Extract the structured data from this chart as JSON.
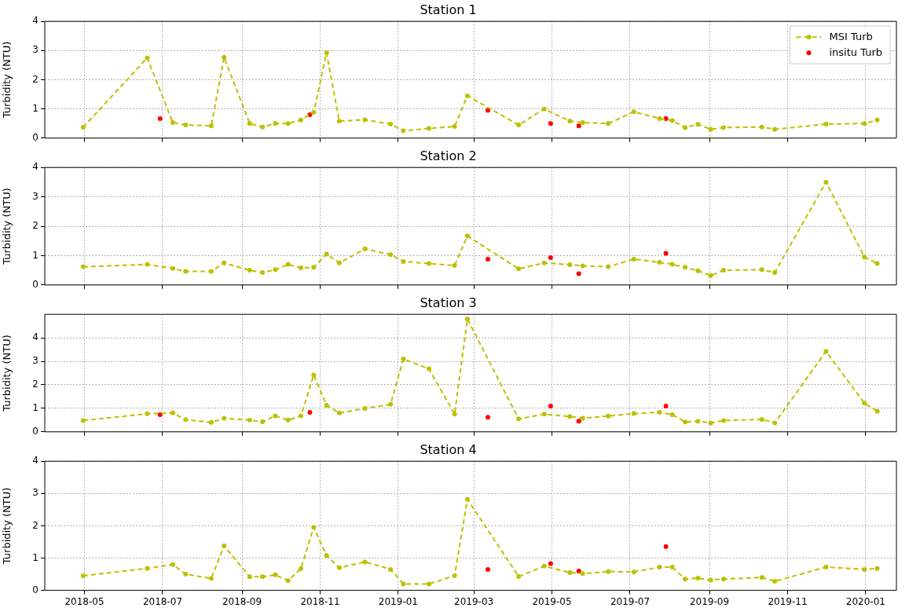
{
  "chart_data": [
    {
      "type": "line",
      "title": "Station 1",
      "ylabel": "Turbidity (NTU)",
      "xlim": [
        "2018-03-31",
        "2020-01-25"
      ],
      "xticks": [
        "2018-05",
        "2018-07",
        "2018-09",
        "2018-11",
        "2019-01",
        "2019-03",
        "2019-05",
        "2019-07",
        "2019-09",
        "2019-11",
        "2020-01"
      ],
      "ylim": [
        0,
        4
      ],
      "yticks": [
        0,
        1,
        2,
        3,
        4
      ],
      "grid": true,
      "legend": "top right",
      "marker": "circle",
      "line_style": "dashed",
      "tick_labels": "y",
      "x": [
        "2018-04-30",
        "2018-06-19",
        "2018-07-09",
        "2018-07-19",
        "2018-08-08",
        "2018-08-18",
        "2018-09-07",
        "2018-09-17",
        "2018-09-27",
        "2018-10-07",
        "2018-10-17",
        "2018-10-27",
        "2018-11-06",
        "2018-11-16",
        "2018-12-06",
        "2018-12-26",
        "2019-01-05",
        "2019-01-25",
        "2019-02-14",
        "2019-02-24",
        "2019-04-05",
        "2019-04-25",
        "2019-05-15",
        "2019-05-25",
        "2019-06-14",
        "2019-07-04",
        "2019-07-24",
        "2019-08-03",
        "2019-08-13",
        "2019-08-23",
        "2019-09-02",
        "2019-09-12",
        "2019-10-12",
        "2019-10-22",
        "2019-12-01",
        "2019-12-31",
        "2020-01-10"
      ],
      "series": [
        {
          "name": "MSI Turb",
          "type": "line",
          "color": "#bfbf00",
          "values": [
            0.37,
            2.75,
            0.53,
            0.45,
            0.42,
            2.77,
            0.5,
            0.38,
            0.5,
            0.5,
            0.62,
            0.88,
            2.92,
            0.58,
            0.63,
            0.48,
            0.25,
            0.33,
            0.4,
            1.45,
            0.45,
            1.0,
            0.58,
            0.53,
            0.5,
            0.9,
            0.67,
            0.6,
            0.36,
            0.47,
            0.3,
            0.36,
            0.38,
            0.3,
            0.48,
            0.5,
            0.62
          ]
        },
        {
          "name": "insitu Turb",
          "type": "scatter",
          "color": "#ff0000",
          "x": [
            "2018-06-29",
            "2018-10-24",
            "2019-03-12",
            "2019-04-30",
            "2019-05-22",
            "2019-07-29"
          ],
          "values": [
            0.67,
            0.8,
            0.95,
            0.5,
            0.42,
            0.67
          ]
        }
      ]
    },
    {
      "type": "line",
      "title": "Station 2",
      "ylabel": "Turbidity (NTU)",
      "xlim": [
        "2018-03-31",
        "2020-01-25"
      ],
      "xticks": [
        "2018-05",
        "2018-07",
        "2018-09",
        "2018-11",
        "2019-01",
        "2019-03",
        "2019-05",
        "2019-07",
        "2019-09",
        "2019-11",
        "2020-01"
      ],
      "ylim": [
        0,
        4
      ],
      "yticks": [
        0,
        1,
        2,
        3,
        4
      ],
      "grid": true,
      "marker": "circle",
      "line_style": "dashed",
      "tick_labels": "y",
      "x": [
        "2018-04-30",
        "2018-06-19",
        "2018-07-09",
        "2018-07-19",
        "2018-08-08",
        "2018-08-18",
        "2018-09-07",
        "2018-09-17",
        "2018-09-27",
        "2018-10-07",
        "2018-10-17",
        "2018-10-27",
        "2018-11-06",
        "2018-11-16",
        "2018-12-06",
        "2018-12-26",
        "2019-01-05",
        "2019-01-25",
        "2019-02-14",
        "2019-02-24",
        "2019-04-05",
        "2019-04-25",
        "2019-05-15",
        "2019-05-25",
        "2019-06-14",
        "2019-07-04",
        "2019-07-24",
        "2019-08-03",
        "2019-08-13",
        "2019-08-23",
        "2019-09-02",
        "2019-09-12",
        "2019-10-12",
        "2019-10-22",
        "2019-12-01",
        "2019-12-31",
        "2020-01-10"
      ],
      "series": [
        {
          "type": "line",
          "color": "#bfbf00",
          "values": [
            0.62,
            0.7,
            0.56,
            0.46,
            0.46,
            0.75,
            0.5,
            0.42,
            0.52,
            0.7,
            0.58,
            0.6,
            1.05,
            0.75,
            1.23,
            1.03,
            0.8,
            0.73,
            0.66,
            1.67,
            0.55,
            0.75,
            0.69,
            0.65,
            0.62,
            0.88,
            0.77,
            0.7,
            0.6,
            0.48,
            0.32,
            0.5,
            0.52,
            0.42,
            3.5,
            0.95,
            0.73
          ]
        },
        {
          "type": "scatter",
          "color": "#ff0000",
          "x": [
            "2019-03-12",
            "2019-04-30",
            "2019-05-22",
            "2019-07-29"
          ],
          "values": [
            0.88,
            0.93,
            0.38,
            1.08
          ]
        }
      ]
    },
    {
      "type": "line",
      "title": "Station 3",
      "ylabel": "Turbidity (NTU)",
      "xlim": [
        "2018-03-31",
        "2020-01-25"
      ],
      "xticks": [
        "2018-05",
        "2018-07",
        "2018-09",
        "2018-11",
        "2019-01",
        "2019-03",
        "2019-05",
        "2019-07",
        "2019-09",
        "2019-11",
        "2020-01"
      ],
      "ylim": [
        0,
        5
      ],
      "yticks": [
        0,
        1,
        2,
        3,
        4
      ],
      "grid": true,
      "marker": "circle",
      "line_style": "dashed",
      "tick_labels": "y",
      "x": [
        "2018-04-30",
        "2018-06-19",
        "2018-07-09",
        "2018-07-19",
        "2018-08-08",
        "2018-08-18",
        "2018-09-07",
        "2018-09-17",
        "2018-09-27",
        "2018-10-07",
        "2018-10-17",
        "2018-10-27",
        "2018-11-06",
        "2018-11-16",
        "2018-12-06",
        "2018-12-26",
        "2019-01-05",
        "2019-01-25",
        "2019-02-14",
        "2019-02-24",
        "2019-04-05",
        "2019-04-25",
        "2019-05-15",
        "2019-05-25",
        "2019-06-14",
        "2019-07-04",
        "2019-07-24",
        "2019-08-03",
        "2019-08-13",
        "2019-08-23",
        "2019-09-02",
        "2019-09-12",
        "2019-10-12",
        "2019-10-22",
        "2019-12-01",
        "2019-12-31",
        "2020-01-10"
      ],
      "series": [
        {
          "type": "line",
          "color": "#bfbf00",
          "values": [
            0.48,
            0.77,
            0.8,
            0.52,
            0.4,
            0.58,
            0.5,
            0.43,
            0.68,
            0.5,
            0.68,
            2.42,
            1.13,
            0.8,
            1.0,
            1.17,
            3.1,
            2.68,
            0.75,
            4.8,
            0.55,
            0.75,
            0.65,
            0.58,
            0.67,
            0.78,
            0.83,
            0.73,
            0.42,
            0.45,
            0.38,
            0.48,
            0.53,
            0.38,
            3.42,
            1.22,
            0.88
          ]
        },
        {
          "type": "scatter",
          "color": "#ff0000",
          "x": [
            "2018-06-29",
            "2018-10-24",
            "2019-03-12",
            "2019-04-30",
            "2019-05-22",
            "2019-07-29"
          ],
          "values": [
            0.73,
            0.83,
            0.62,
            1.1,
            0.45,
            1.1
          ]
        }
      ]
    },
    {
      "type": "line",
      "title": "Station 4",
      "ylabel": "Turbidity (NTU)",
      "xlim": [
        "2018-03-31",
        "2020-01-25"
      ],
      "xticks": [
        "2018-05",
        "2018-07",
        "2018-09",
        "2018-11",
        "2019-01",
        "2019-03",
        "2019-05",
        "2019-07",
        "2019-09",
        "2019-11",
        "2020-01"
      ],
      "ylim": [
        0,
        4
      ],
      "yticks": [
        0,
        1,
        2,
        3,
        4
      ],
      "grid": true,
      "marker": "circle",
      "line_style": "dashed",
      "x": [
        "2018-04-30",
        "2018-06-19",
        "2018-07-09",
        "2018-07-19",
        "2018-08-08",
        "2018-08-18",
        "2018-09-07",
        "2018-09-17",
        "2018-09-27",
        "2018-10-07",
        "2018-10-17",
        "2018-10-27",
        "2018-11-06",
        "2018-11-16",
        "2018-12-06",
        "2018-12-26",
        "2019-01-05",
        "2019-01-25",
        "2019-02-14",
        "2019-02-24",
        "2019-04-05",
        "2019-04-25",
        "2019-05-15",
        "2019-05-25",
        "2019-06-14",
        "2019-07-04",
        "2019-07-24",
        "2019-08-03",
        "2019-08-13",
        "2019-08-23",
        "2019-09-02",
        "2019-09-12",
        "2019-10-12",
        "2019-10-22",
        "2019-12-01",
        "2019-12-31",
        "2020-01-10"
      ],
      "series": [
        {
          "type": "line",
          "color": "#bfbf00",
          "values": [
            0.45,
            0.68,
            0.8,
            0.5,
            0.37,
            1.38,
            0.42,
            0.42,
            0.48,
            0.3,
            0.67,
            1.95,
            1.08,
            0.7,
            0.88,
            0.65,
            0.2,
            0.2,
            0.45,
            2.82,
            0.43,
            0.75,
            0.55,
            0.52,
            0.58,
            0.57,
            0.72,
            0.72,
            0.35,
            0.38,
            0.32,
            0.35,
            0.4,
            0.28,
            0.72,
            0.65,
            0.68
          ]
        },
        {
          "type": "scatter",
          "color": "#ff0000",
          "x": [
            "2019-03-12",
            "2019-04-30",
            "2019-05-22",
            "2019-07-29"
          ],
          "values": [
            0.65,
            0.83,
            0.6,
            1.35
          ]
        }
      ]
    }
  ]
}
